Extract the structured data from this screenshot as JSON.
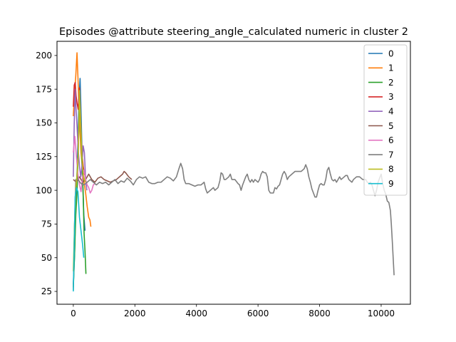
{
  "chart_data": {
    "type": "line",
    "title": "Episodes @attribute steering_angle_calculated numeric in cluster 2",
    "xlabel": "",
    "ylabel": "",
    "xlim": [
      -530,
      10950
    ],
    "ylim": [
      15.5,
      210.5
    ],
    "x_ticks": [
      0,
      2000,
      4000,
      6000,
      8000,
      10000
    ],
    "y_ticks": [
      25,
      50,
      75,
      100,
      125,
      150,
      175,
      200
    ],
    "grid": false,
    "legend_position": "top-right",
    "series": [
      {
        "name": "0",
        "color": "#1f77b4",
        "points": [
          [
            0,
            30
          ],
          [
            40,
            52
          ],
          [
            80,
            92
          ],
          [
            130,
            118
          ],
          [
            180,
            165
          ],
          [
            220,
            183
          ],
          [
            260,
            150
          ],
          [
            300,
            110
          ],
          [
            340,
            82
          ],
          [
            380,
            70
          ]
        ]
      },
      {
        "name": "1",
        "color": "#ff7f0e",
        "points": [
          [
            0,
            155
          ],
          [
            40,
            172
          ],
          [
            80,
            185
          ],
          [
            120,
            202
          ],
          [
            160,
            178
          ],
          [
            200,
            152
          ],
          [
            250,
            128
          ],
          [
            300,
            115
          ],
          [
            350,
            106
          ],
          [
            400,
            98
          ],
          [
            450,
            88
          ],
          [
            500,
            80
          ],
          [
            540,
            78
          ],
          [
            570,
            73
          ]
        ]
      },
      {
        "name": "2",
        "color": "#2ca02c",
        "points": [
          [
            0,
            28
          ],
          [
            40,
            52
          ],
          [
            80,
            82
          ],
          [
            120,
            98
          ],
          [
            160,
            128
          ],
          [
            200,
            170
          ],
          [
            240,
            148
          ],
          [
            280,
            120
          ],
          [
            320,
            98
          ],
          [
            350,
            68
          ],
          [
            380,
            55
          ],
          [
            410,
            38
          ]
        ]
      },
      {
        "name": "3",
        "color": "#d62728",
        "points": [
          [
            0,
            162
          ],
          [
            30,
            178
          ],
          [
            60,
            180
          ],
          [
            90,
            170
          ],
          [
            120,
            165
          ],
          [
            160,
            160
          ],
          [
            200,
            176
          ],
          [
            240,
            150
          ],
          [
            280,
            128
          ],
          [
            320,
            118
          ],
          [
            360,
            112
          ],
          [
            400,
            110
          ]
        ]
      },
      {
        "name": "4",
        "color": "#9467bd",
        "points": [
          [
            0,
            110
          ],
          [
            30,
            150
          ],
          [
            60,
            175
          ],
          [
            90,
            160
          ],
          [
            120,
            148
          ],
          [
            160,
            130
          ],
          [
            200,
            118
          ],
          [
            240,
            110
          ],
          [
            280,
            118
          ],
          [
            320,
            133
          ],
          [
            360,
            128
          ],
          [
            400,
            108
          ],
          [
            440,
            100
          ]
        ]
      },
      {
        "name": "5",
        "color": "#8c564b",
        "points": [
          [
            0,
            108
          ],
          [
            100,
            106
          ],
          [
            200,
            110
          ],
          [
            300,
            106
          ],
          [
            400,
            108
          ],
          [
            500,
            112
          ],
          [
            600,
            108
          ],
          [
            700,
            106
          ],
          [
            800,
            109
          ],
          [
            900,
            110
          ],
          [
            1000,
            108
          ],
          [
            1100,
            107
          ],
          [
            1200,
            106
          ],
          [
            1300,
            107
          ],
          [
            1400,
            108
          ],
          [
            1500,
            110
          ],
          [
            1600,
            112
          ],
          [
            1650,
            114
          ],
          [
            1700,
            113
          ],
          [
            1800,
            110
          ],
          [
            1900,
            108
          ]
        ]
      },
      {
        "name": "6",
        "color": "#e377c2",
        "points": [
          [
            0,
            128
          ],
          [
            50,
            140
          ],
          [
            100,
            125
          ],
          [
            150,
            112
          ],
          [
            200,
            104
          ],
          [
            250,
            99
          ],
          [
            300,
            110
          ],
          [
            350,
            115
          ],
          [
            400,
            108
          ],
          [
            450,
            104
          ],
          [
            500,
            102
          ],
          [
            550,
            98
          ],
          [
            600,
            100
          ],
          [
            650,
            104
          ],
          [
            700,
            105
          ]
        ]
      },
      {
        "name": "7",
        "color": "#7f7f7f",
        "points": [
          [
            0,
            26
          ],
          [
            40,
            75
          ],
          [
            80,
            108
          ],
          [
            150,
            108
          ],
          [
            250,
            105
          ],
          [
            350,
            104
          ],
          [
            450,
            106
          ],
          [
            550,
            108
          ],
          [
            650,
            106
          ],
          [
            750,
            104
          ],
          [
            850,
            106
          ],
          [
            950,
            105
          ],
          [
            1050,
            106
          ],
          [
            1150,
            104
          ],
          [
            1250,
            106
          ],
          [
            1350,
            108
          ],
          [
            1450,
            105
          ],
          [
            1550,
            107
          ],
          [
            1650,
            106
          ],
          [
            1750,
            109
          ],
          [
            1850,
            107
          ],
          [
            1950,
            104
          ],
          [
            2050,
            108
          ],
          [
            2150,
            110
          ],
          [
            2250,
            109
          ],
          [
            2350,
            110
          ],
          [
            2450,
            106
          ],
          [
            2550,
            105
          ],
          [
            2650,
            105
          ],
          [
            2750,
            106
          ],
          [
            2850,
            106
          ],
          [
            2950,
            108
          ],
          [
            3050,
            110
          ],
          [
            3150,
            109
          ],
          [
            3250,
            107
          ],
          [
            3350,
            110
          ],
          [
            3430,
            116
          ],
          [
            3490,
            120
          ],
          [
            3550,
            116
          ],
          [
            3600,
            108
          ],
          [
            3650,
            105
          ],
          [
            3750,
            105
          ],
          [
            3850,
            104
          ],
          [
            3950,
            103
          ],
          [
            4050,
            104
          ],
          [
            4150,
            104
          ],
          [
            4250,
            106
          ],
          [
            4300,
            101
          ],
          [
            4350,
            98
          ],
          [
            4450,
            100
          ],
          [
            4550,
            102
          ],
          [
            4600,
            100
          ],
          [
            4700,
            102
          ],
          [
            4760,
            107
          ],
          [
            4800,
            113
          ],
          [
            4850,
            112
          ],
          [
            4900,
            108
          ],
          [
            4950,
            108
          ],
          [
            5050,
            110
          ],
          [
            5100,
            112
          ],
          [
            5150,
            108
          ],
          [
            5250,
            108
          ],
          [
            5350,
            105
          ],
          [
            5400,
            104
          ],
          [
            5450,
            100
          ],
          [
            5500,
            104
          ],
          [
            5600,
            110
          ],
          [
            5650,
            112
          ],
          [
            5700,
            108
          ],
          [
            5750,
            106
          ],
          [
            5800,
            108
          ],
          [
            5850,
            106
          ],
          [
            5900,
            108
          ],
          [
            5950,
            107
          ],
          [
            6000,
            106
          ],
          [
            6050,
            108
          ],
          [
            6100,
            112
          ],
          [
            6150,
            114
          ],
          [
            6200,
            113
          ],
          [
            6250,
            113
          ],
          [
            6300,
            110
          ],
          [
            6350,
            100
          ],
          [
            6400,
            98
          ],
          [
            6450,
            98
          ],
          [
            6500,
            98
          ],
          [
            6550,
            102
          ],
          [
            6600,
            101
          ],
          [
            6650,
            103
          ],
          [
            6700,
            104
          ],
          [
            6750,
            108
          ],
          [
            6800,
            112
          ],
          [
            6850,
            114
          ],
          [
            6900,
            112
          ],
          [
            6950,
            108
          ],
          [
            7000,
            110
          ],
          [
            7100,
            112
          ],
          [
            7200,
            114
          ],
          [
            7300,
            114
          ],
          [
            7400,
            114
          ],
          [
            7500,
            116
          ],
          [
            7550,
            119
          ],
          [
            7600,
            116
          ],
          [
            7650,
            110
          ],
          [
            7700,
            106
          ],
          [
            7750,
            101
          ],
          [
            7800,
            98
          ],
          [
            7850,
            95
          ],
          [
            7900,
            95
          ],
          [
            7950,
            100
          ],
          [
            8000,
            104
          ],
          [
            8050,
            105
          ],
          [
            8100,
            104
          ],
          [
            8150,
            104
          ],
          [
            8200,
            108
          ],
          [
            8250,
            115
          ],
          [
            8300,
            117
          ],
          [
            8350,
            112
          ],
          [
            8400,
            108
          ],
          [
            8450,
            107
          ],
          [
            8500,
            108
          ],
          [
            8550,
            106
          ],
          [
            8600,
            108
          ],
          [
            8650,
            110
          ],
          [
            8700,
            108
          ],
          [
            8750,
            109
          ],
          [
            8800,
            110
          ],
          [
            8850,
            111
          ],
          [
            8900,
            111
          ],
          [
            8950,
            108
          ],
          [
            9000,
            107
          ],
          [
            9050,
            106
          ],
          [
            9100,
            108
          ],
          [
            9150,
            109
          ],
          [
            9200,
            110
          ],
          [
            9250,
            110
          ],
          [
            9300,
            110
          ],
          [
            9350,
            109
          ],
          [
            9400,
            108
          ],
          [
            9450,
            108
          ],
          [
            9500,
            108
          ],
          [
            9550,
            106
          ],
          [
            9600,
            105
          ],
          [
            9650,
            106
          ],
          [
            9700,
            104
          ],
          [
            9750,
            100
          ],
          [
            9800,
            96
          ],
          [
            9850,
            100
          ],
          [
            9900,
            106
          ],
          [
            9950,
            109
          ],
          [
            10000,
            112
          ],
          [
            10050,
            105
          ],
          [
            10100,
            100
          ],
          [
            10150,
            97
          ],
          [
            10200,
            92
          ],
          [
            10250,
            91
          ],
          [
            10300,
            85
          ],
          [
            10330,
            75
          ],
          [
            10360,
            63
          ],
          [
            10390,
            50
          ],
          [
            10420,
            37
          ]
        ]
      },
      {
        "name": "8",
        "color": "#bcbd22",
        "points": [
          [
            0,
            40
          ],
          [
            40,
            75
          ],
          [
            80,
            100
          ],
          [
            120,
            112
          ],
          [
            160,
            125
          ],
          [
            200,
            174
          ],
          [
            240,
            150
          ],
          [
            280,
            125
          ],
          [
            320,
            112
          ],
          [
            360,
            108
          ],
          [
            400,
            106
          ]
        ]
      },
      {
        "name": "9",
        "color": "#17becf",
        "points": [
          [
            0,
            25
          ],
          [
            30,
            60
          ],
          [
            60,
            95
          ],
          [
            100,
            102
          ],
          [
            150,
            99
          ],
          [
            200,
            80
          ],
          [
            250,
            70
          ],
          [
            300,
            60
          ],
          [
            340,
            50
          ]
        ]
      }
    ]
  }
}
